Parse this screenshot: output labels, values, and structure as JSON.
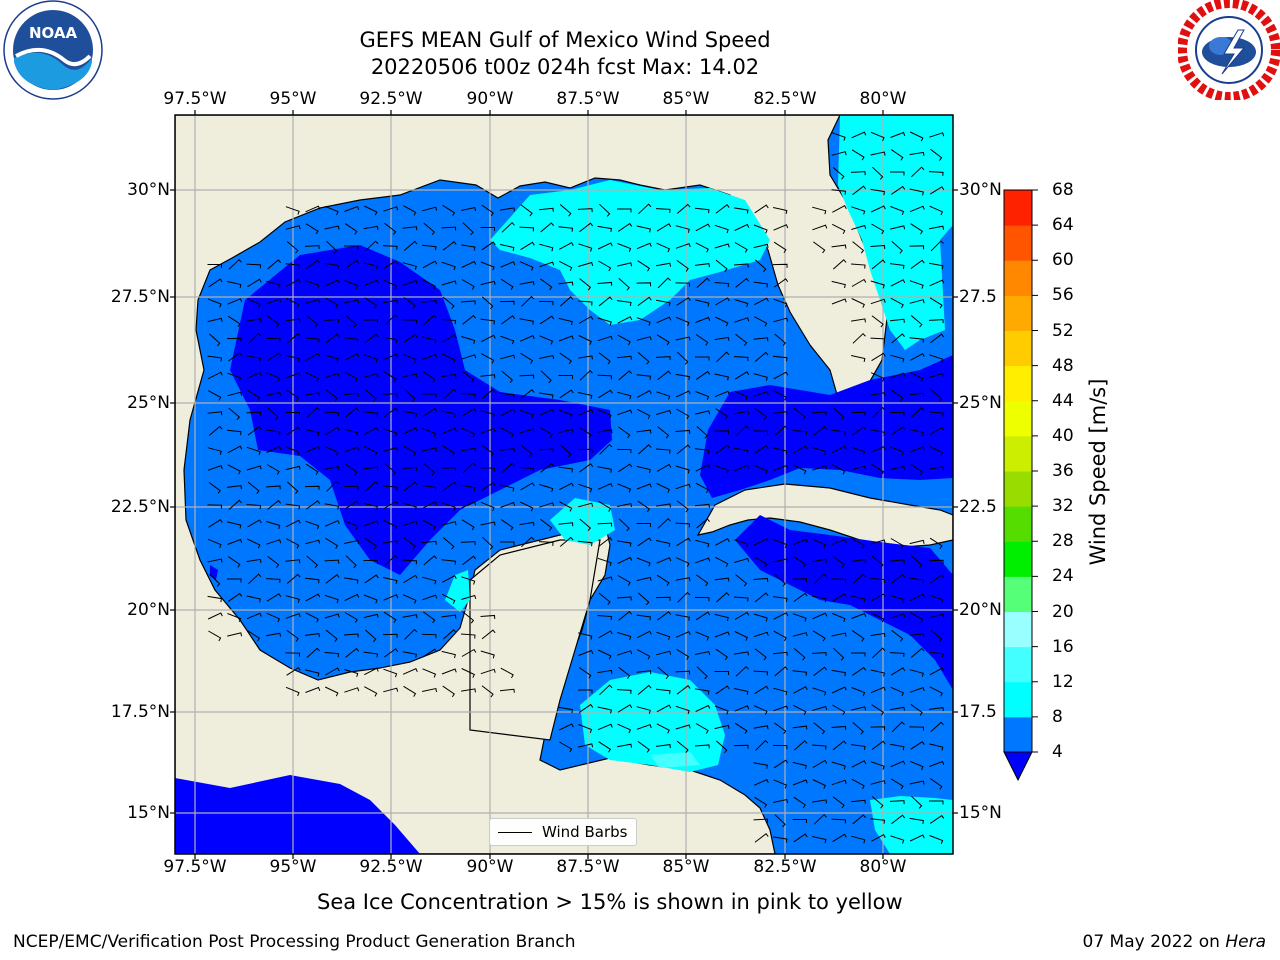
{
  "header": {
    "title_line1": "GEFS MEAN Gulf of Mexico Wind Speed",
    "title_line2": "20220506 t00z 024h fcst   Max: 14.02"
  },
  "axes": {
    "lon_ticks": [
      "97.5°W",
      "95°W",
      "92.5°W",
      "90°W",
      "87.5°W",
      "85°W",
      "82.5°W",
      "80°W"
    ],
    "lat_ticks_left": [
      "30°N",
      "27.5°N",
      "25°N",
      "22.5°N",
      "20°N",
      "17.5°N",
      "15°N"
    ],
    "lat_ticks_right": [
      "30°N",
      "27.5",
      "25°N",
      "22.5",
      "20°N",
      "17.5",
      "15°N"
    ]
  },
  "colorbar": {
    "title": "Wind Speed [m/s]",
    "levels": [
      "4",
      "8",
      "12",
      "16",
      "20",
      "24",
      "28",
      "32",
      "36",
      "40",
      "44",
      "48",
      "52",
      "56",
      "60",
      "64",
      "68"
    ],
    "colors": [
      "#0000ff",
      "#0077ff",
      "#00ffff",
      "#44ffff",
      "#99ffff",
      "#55ff77",
      "#00ee00",
      "#55dd00",
      "#99dd00",
      "#ccee00",
      "#eeff00",
      "#ffee00",
      "#ffcc00",
      "#ffaa00",
      "#ff8800",
      "#ff5500",
      "#ff2200",
      "#ff0000"
    ],
    "under_color": "#0000ff"
  },
  "legend": {
    "label": "Wind Barbs"
  },
  "footer": {
    "note": "Sea Ice Concentration > 15% is shown in pink to yellow",
    "credit": "NCEP/EMC/Verification Post Processing Product Generation Branch",
    "date": "07 May 2022 on ",
    "machine": "Hera"
  },
  "logos": {
    "left": {
      "icon": "noaa-logo-icon",
      "text": "NOAA"
    },
    "right": {
      "icon": "nws-logo-icon"
    }
  },
  "map_colors": {
    "land": "#efeddb",
    "speed_4_8": "#0077ff",
    "speed_0_4": "#0000ff",
    "speed_8_12": "#00ffff",
    "speed_12_16": "#44ffff",
    "grid": "#b0b0b0"
  }
}
